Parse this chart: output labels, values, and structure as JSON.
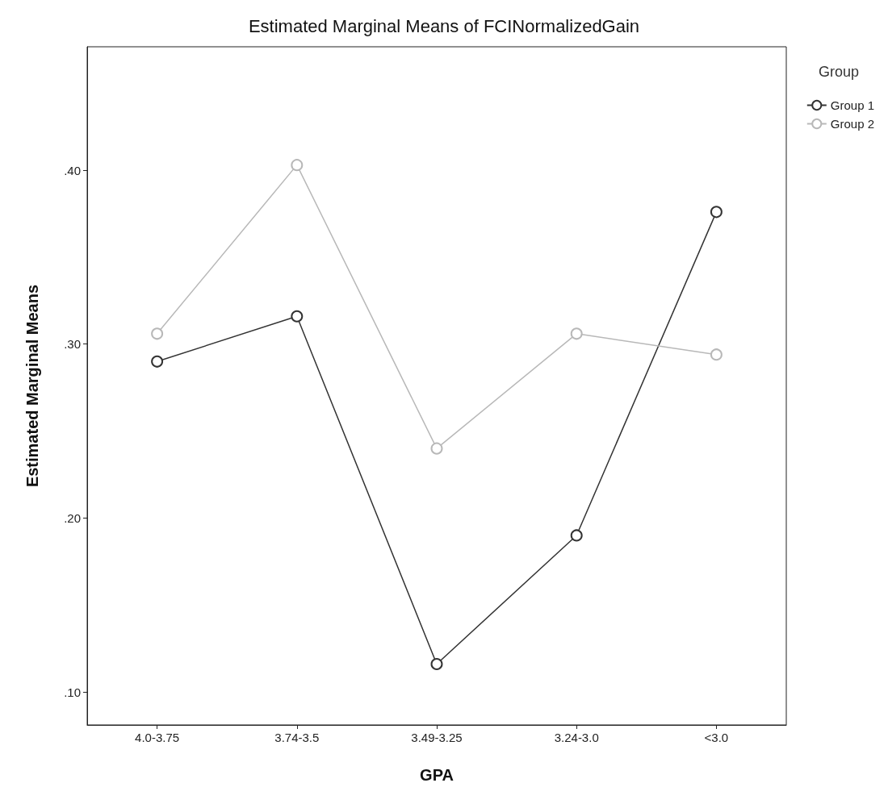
{
  "chart_data": {
    "type": "line",
    "title": "Estimated Marginal Means of FCINormalizedGain",
    "xlabel": "GPA",
    "ylabel": "Estimated Marginal Means",
    "legend_title": "Group",
    "categories": [
      "4.0-3.75",
      "3.74-3.5",
      "3.49-3.25",
      "3.24-3.0",
      "<3.0"
    ],
    "series": [
      {
        "name": "Group 1",
        "color": "#333333",
        "values": [
          0.29,
          0.316,
          0.116,
          0.19,
          0.376
        ]
      },
      {
        "name": "Group 2",
        "color": "#b8b8b8",
        "values": [
          0.306,
          0.403,
          0.24,
          0.306,
          0.294
        ]
      }
    ],
    "ylim": [
      0.081,
      0.471
    ],
    "yticks": [
      {
        "value": 0.1,
        "label": ".10"
      },
      {
        "value": 0.2,
        "label": ".20"
      },
      {
        "value": 0.3,
        "label": ".30"
      },
      {
        "value": 0.4,
        "label": ".40"
      }
    ],
    "grid": false,
    "legend": "top right",
    "marker": "circle",
    "line_style": "solid"
  }
}
